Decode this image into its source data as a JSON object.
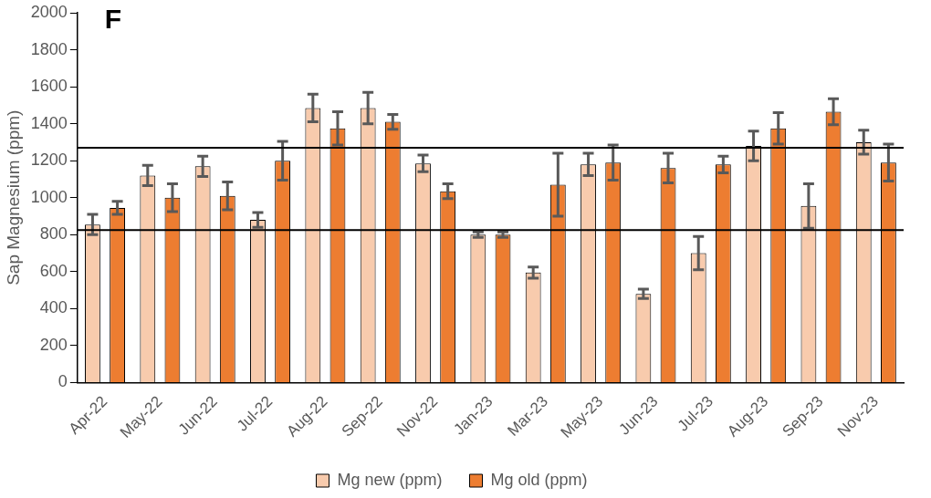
{
  "chart_data": {
    "type": "bar",
    "title": "F",
    "ylabel": "Sap Magnesium (ppm)",
    "categories": [
      "Apr-22",
      "May-22",
      "Jun-22",
      "Jul-22",
      "Aug-22",
      "Sep-22",
      "Nov-22",
      "Jan-23",
      "Mar-23",
      "May-23",
      "Jun-23",
      "Jul-23",
      "Aug-23",
      "Sep-23",
      "Nov-23"
    ],
    "series": [
      {
        "name": "Mg new (ppm)",
        "color": "#f8cbad",
        "values": [
          855,
          1120,
          1170,
          880,
          1485,
          1485,
          1185,
          800,
          595,
          1180,
          480,
          700,
          1280,
          955,
          1300
        ],
        "errors": [
          55,
          55,
          55,
          40,
          75,
          85,
          45,
          15,
          30,
          60,
          25,
          90,
          80,
          120,
          65
        ]
      },
      {
        "name": "Mg old (ppm)",
        "color": "#ed7d31",
        "values": [
          945,
          1000,
          1010,
          1200,
          1375,
          1410,
          1035,
          800,
          1070,
          1190,
          1160,
          1180,
          1375,
          1465,
          1190
        ],
        "errors": [
          35,
          75,
          75,
          105,
          90,
          40,
          40,
          15,
          170,
          95,
          80,
          45,
          85,
          70,
          100
        ]
      }
    ],
    "ylim": [
      0,
      2000
    ],
    "yticks": [
      0,
      200,
      400,
      600,
      800,
      1000,
      1200,
      1400,
      1600,
      1800,
      2000
    ],
    "ref_lines": [
      {
        "axis": "y",
        "value": 1270,
        "color": "#000000"
      },
      {
        "axis": "y",
        "value": 825,
        "color": "#000000"
      }
    ],
    "grid": false,
    "legend": "bottom"
  }
}
